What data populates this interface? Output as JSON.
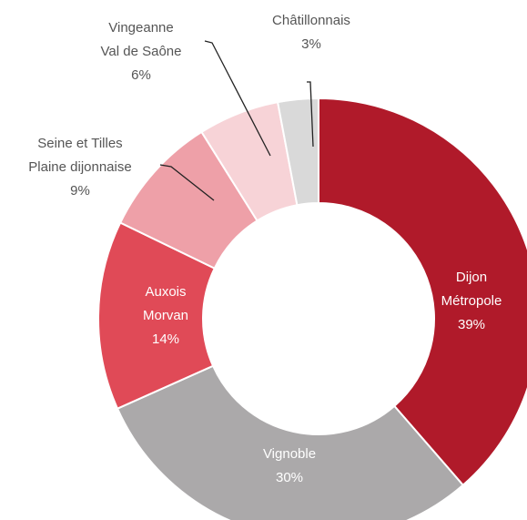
{
  "chart_data": {
    "type": "pie",
    "variant": "donut",
    "title": "",
    "slices": [
      {
        "label_lines": [
          "Dijon",
          "Métropole"
        ],
        "value_text": "39%",
        "value": 39,
        "color": "#B01A2A",
        "label_pos": "inside"
      },
      {
        "label_lines": [
          "Vignoble"
        ],
        "value_text": "30%",
        "value": 30,
        "color": "#ABA9AA",
        "label_pos": "inside"
      },
      {
        "label_lines": [
          "Auxois",
          "Morvan"
        ],
        "value_text": "14%",
        "value": 14,
        "color": "#E04A57",
        "label_pos": "inside"
      },
      {
        "label_lines": [
          "Seine et Tilles",
          "Plaine dijonnaise"
        ],
        "value_text": "9%",
        "value": 9,
        "color": "#EEA0A8",
        "label_pos": "outside"
      },
      {
        "label_lines": [
          "Vingeanne",
          "Val de Saône"
        ],
        "value_text": "6%",
        "value": 6,
        "color": "#F7D3D7",
        "label_pos": "outside"
      },
      {
        "label_lines": [
          "Châtillonnais"
        ],
        "value_text": "3%",
        "value": 3,
        "color": "#D9D9D9",
        "label_pos": "outside"
      }
    ],
    "start_angle_deg": 0,
    "direction": "clockwise",
    "legend": "none"
  }
}
